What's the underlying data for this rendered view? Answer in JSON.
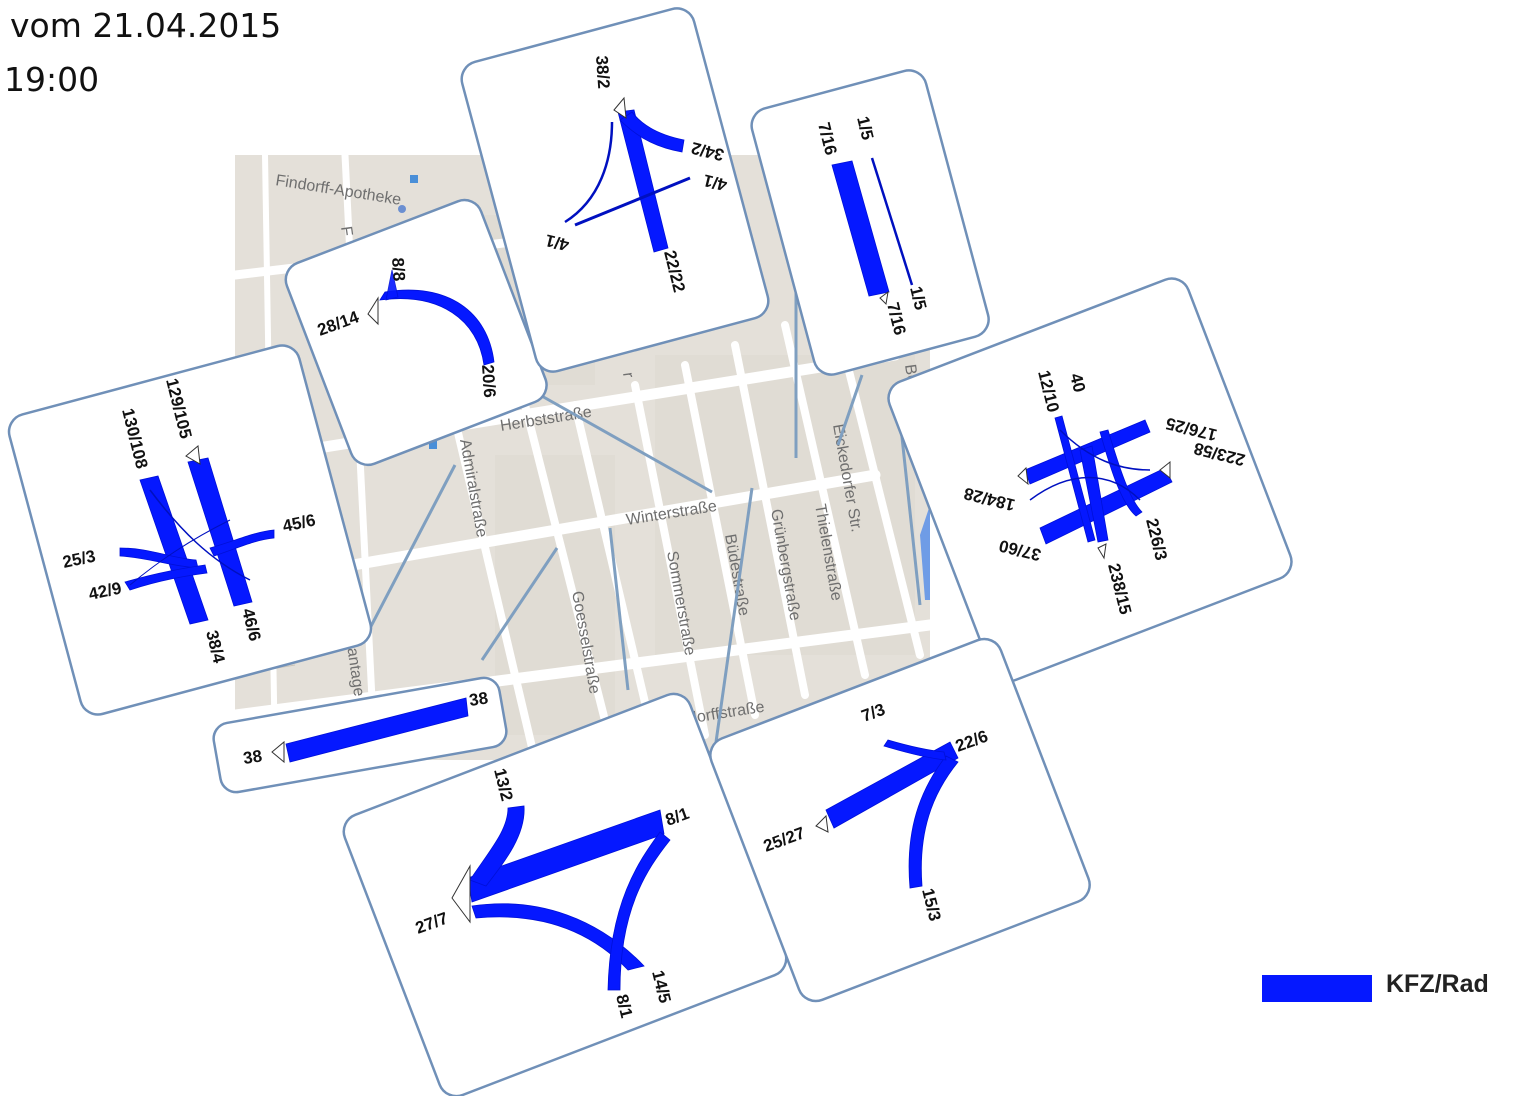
{
  "header": {
    "date": "vom 21.04.2015",
    "time": "19:00"
  },
  "legend": {
    "label": "KFZ/Rad",
    "color": "#0518ff"
  },
  "streets": {
    "findorff_apotheke": "Findorff-Apotheke",
    "herbststrasse": "Herbststraße",
    "winterstrasse": "Winterstraße",
    "admiralstrasse": "Admiralstraße",
    "goesselstrasse": "Goesselstraße",
    "sommerstrasse": "Sommerstraße",
    "buedestrasse": "Büdestraße",
    "gruenbergstrasse": "Grünbergstraße",
    "thielenstrasse": "Thielenstraße",
    "eickedorfer": "Eickedorfer Str.",
    "findorffstrasse": "Findorffstraße",
    "plantage": "lantage",
    "fragment_f": "F",
    "fragment_r": "r",
    "fragment_be": "Be"
  },
  "panels": {
    "p1": {
      "n": "8/8",
      "w": "28/14",
      "se": "20/6"
    },
    "p2": {
      "top": "38/2",
      "ne": "34/2",
      "e": "4/1",
      "w": "4/1",
      "s": "22/22"
    },
    "p3": {
      "a": "7/16",
      "b": "1/5",
      "c": "1/5",
      "d": "7/16"
    },
    "p4": {
      "n1": "129/105",
      "n2": "130/108",
      "e": "45/6",
      "w1": "25/3",
      "w2": "42/9",
      "s1": "46/6",
      "s2": "38/4"
    },
    "p5": {
      "a": "12/10",
      "b": "40",
      "c": "176/25",
      "d": "223/58",
      "e": "184/28",
      "f": "37/60",
      "g": "238/15",
      "h": "226/3"
    },
    "p6": {
      "w": "38",
      "e": "38"
    },
    "p7": {
      "n": "13/2",
      "ne": "8/1",
      "w": "27/7",
      "s1": "14/5",
      "s2": "8/1"
    },
    "p8": {
      "n": "7/3",
      "ne": "22/6",
      "w": "25/27",
      "s": "15/3"
    }
  }
}
